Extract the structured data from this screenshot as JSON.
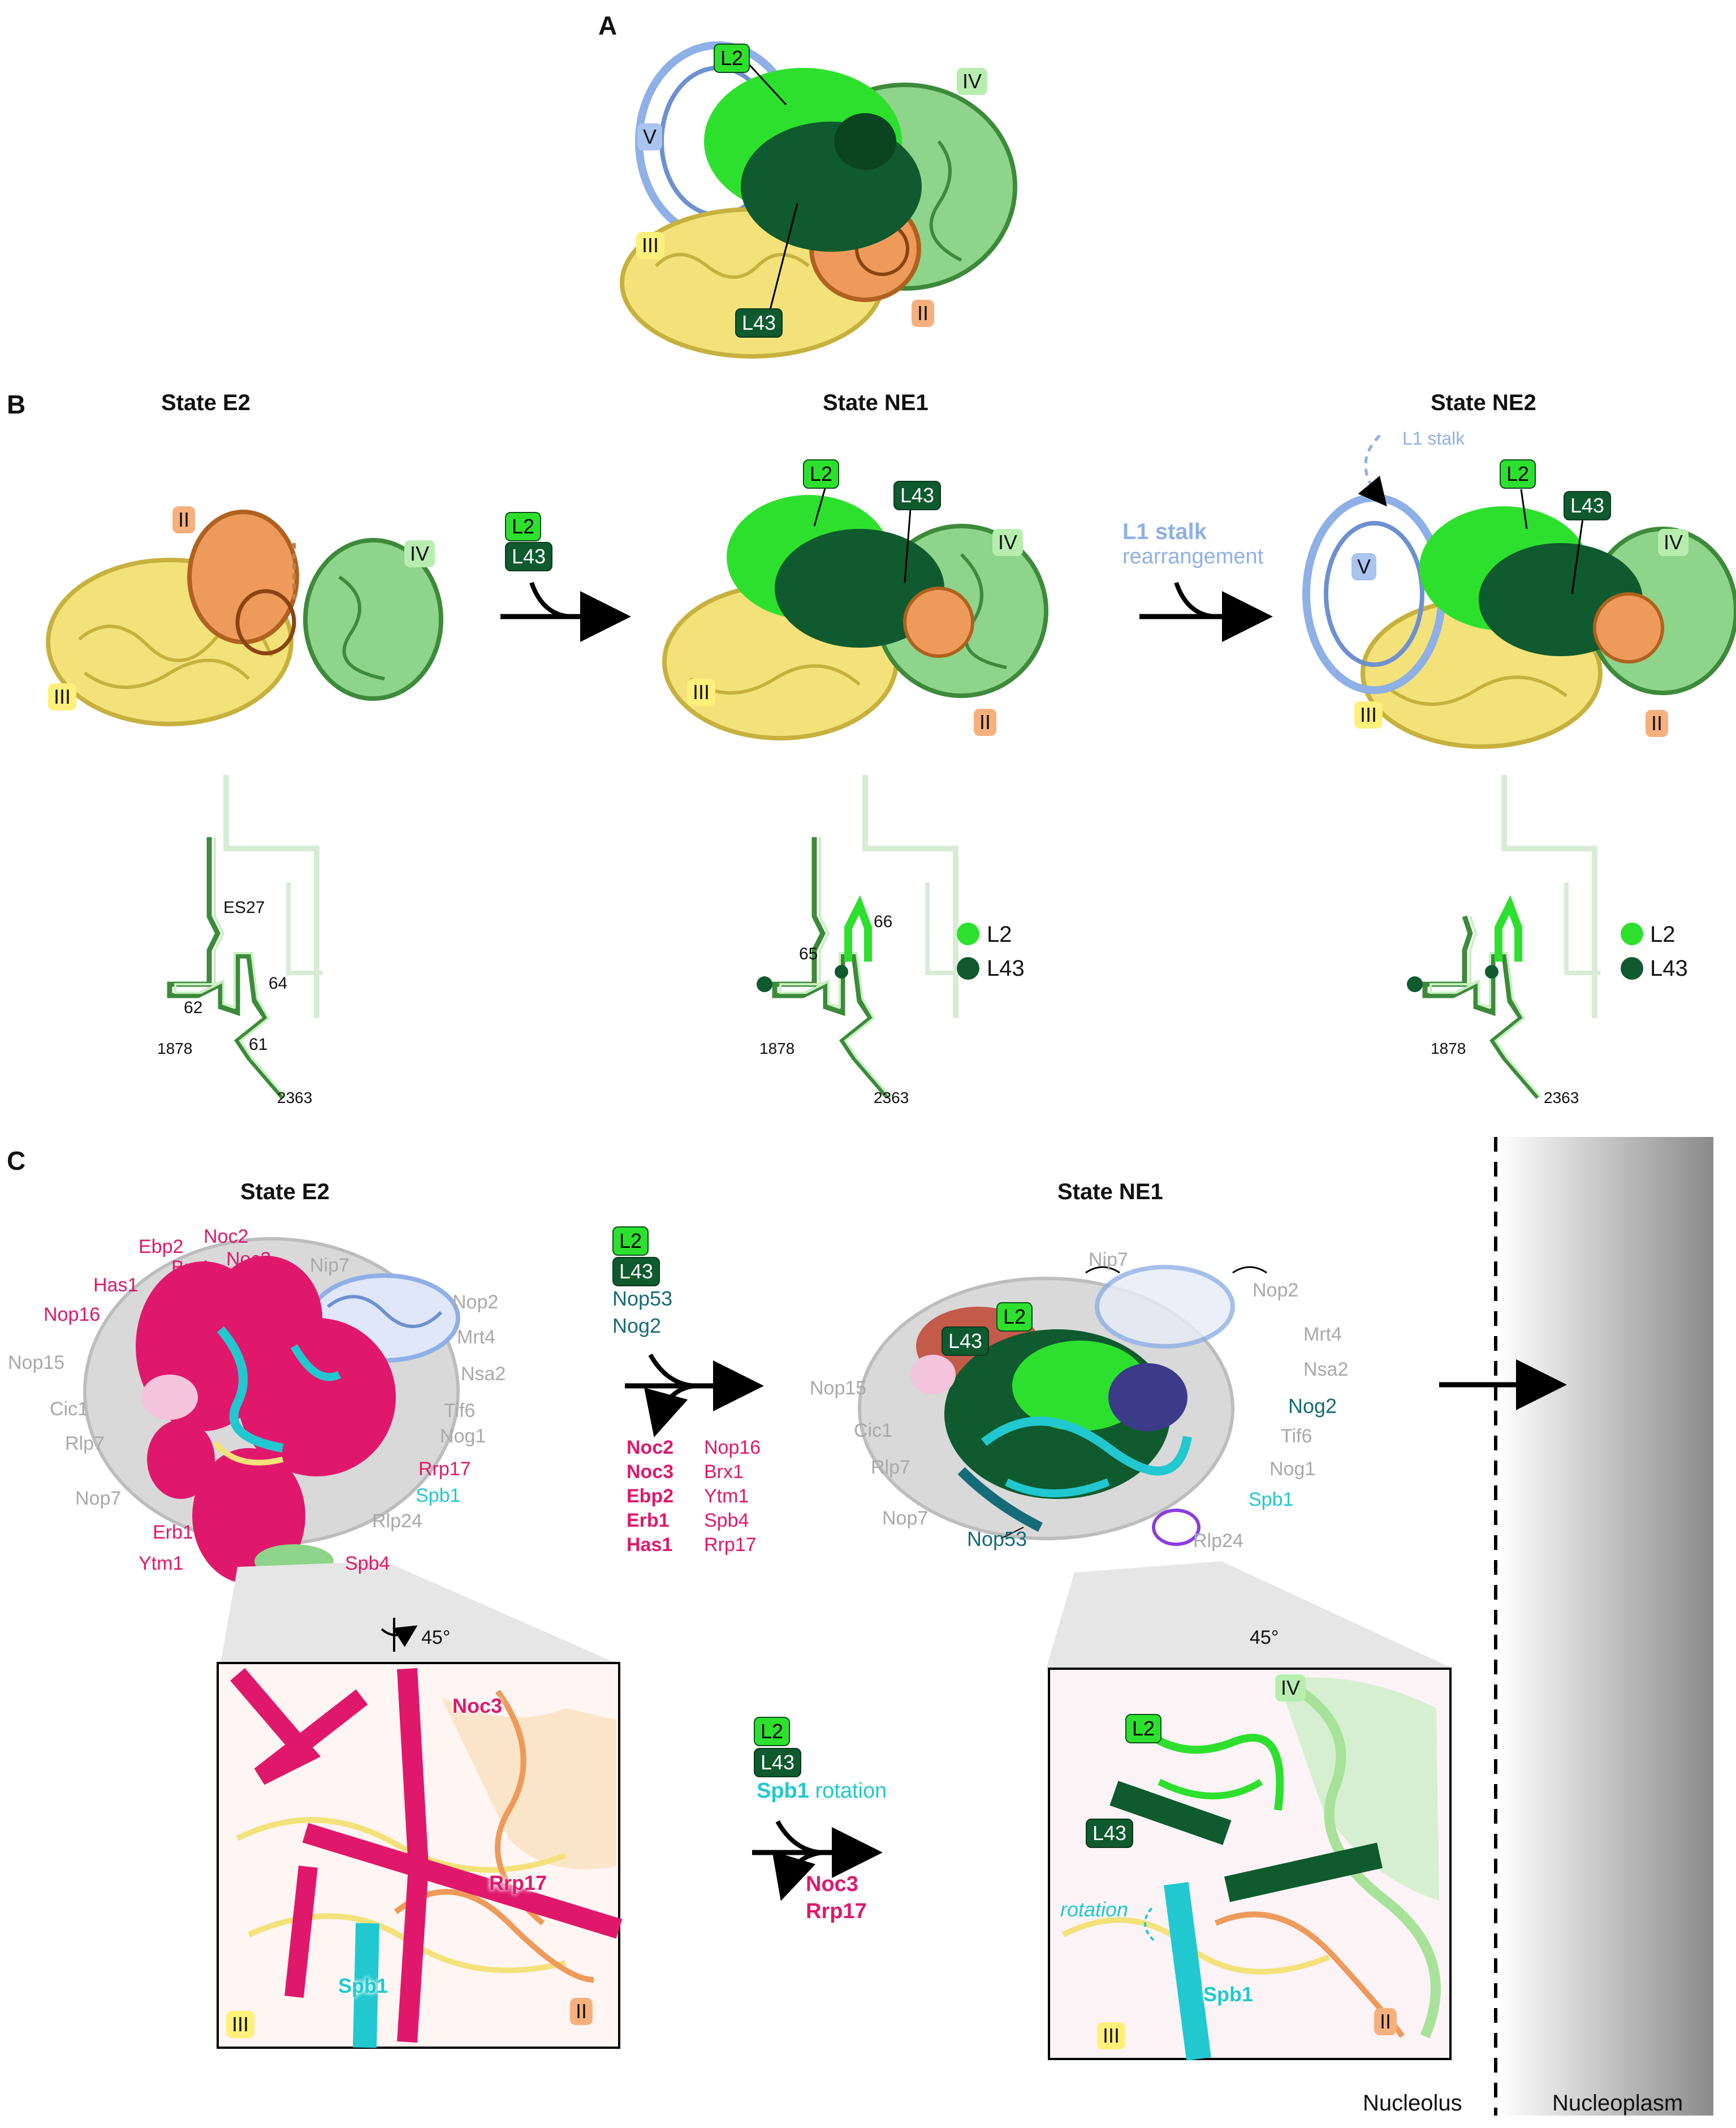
{
  "panels": {
    "a": "A",
    "b": "B",
    "c": "C"
  },
  "colors": {
    "light_green": "#2ee02e",
    "dark_green": "#0f5a2e",
    "pale_green": "#8ed48a",
    "blue": "#8fb0e6",
    "yellow": "#f3e27a",
    "orange": "#ee9a5a",
    "magenta": "#e0186c",
    "cyan": "#21c8cf",
    "grey": "#d9d9d9",
    "teal": "#156b78"
  },
  "domains": {
    "ii": "II",
    "iii": "III",
    "iv": "IV",
    "v": "V"
  },
  "proteins": {
    "l2": "L2",
    "l43": "L43"
  },
  "panel_b": {
    "state_e2": "State E2",
    "state_ne1": "State NE1",
    "state_ne2": "State NE2",
    "l1_stalk_bold": "L1 stalk",
    "rearrangement": "rearrangement",
    "l1_stalk_dashed": "L1 stalk",
    "es27": "ES27",
    "h61": "61",
    "h62": "62",
    "h64": "64",
    "h65": "65",
    "h66": "66",
    "n1878": "1878",
    "n2363": "2363",
    "legend_l2": "L2",
    "legend_l43": "L43"
  },
  "panel_c": {
    "state_e2": "State E2",
    "state_ne1": "State NE1",
    "e2_magenta": [
      "Ebp2",
      "Noc2",
      "Brx1",
      "Noc3",
      "Has1",
      "Nop16",
      "Erb1",
      "Ytm1",
      "Spb4"
    ],
    "e2_grey": [
      "Nip7",
      "Nop2",
      "Mrt4",
      "Nsa2",
      "Nop15",
      "Cic1",
      "Rlp7",
      "Tif6",
      "Nog1",
      "Nop7",
      "Rlp24"
    ],
    "e2_rrp17": "Rrp17",
    "e2_spb1": "Spb1",
    "join_teal1": "Nop53",
    "join_teal2": "Nog2",
    "leave_bold": [
      "Noc2",
      "Noc3",
      "Ebp2",
      "Erb1",
      "Has1"
    ],
    "leave_plain": [
      "Nop16",
      "Brx1",
      "Ytm1",
      "Spb4",
      "Rrp17"
    ],
    "ne1_grey": [
      "Nip7",
      "Nop2",
      "Mrt4",
      "Nsa2",
      "Nop15",
      "Cic1",
      "Rlp7",
      "Tif6",
      "Nog1",
      "Nop7",
      "Rlp24"
    ],
    "ne1_nog2": "Nog2",
    "ne1_spb1": "Spb1",
    "ne1_nop53": "Nop53",
    "rot45": "45°",
    "zoom_e2": {
      "noc3": "Noc3",
      "rrp17": "Rrp17",
      "spb1": "Spb1"
    },
    "zoom_ne1": {
      "spb1": "Spb1",
      "rotation": "rotation"
    },
    "spb1_bold": "Spb1",
    "rotation_word": "rotation",
    "out_noc3": "Noc3",
    "out_rrp17": "Rrp17",
    "nucleolus": "Nucleolus",
    "nucleoplasm": "Nucleoplasm"
  }
}
